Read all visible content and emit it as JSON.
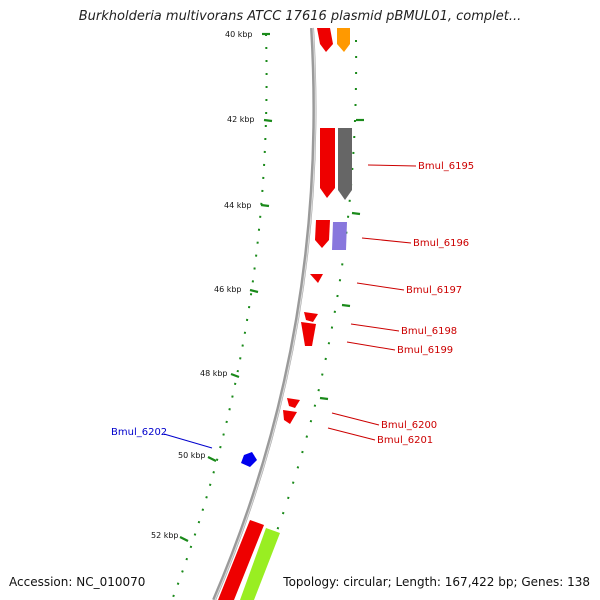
{
  "header": {
    "title": "Burkholderia multivorans ATCC 17616 plasmid pBMUL01, complet..."
  },
  "footer": {
    "accession": "Accession: NC_010070",
    "topology": "Topology: circular; Length: 167,422 bp; Genes: 138"
  },
  "map": {
    "tick_labels": [
      "40 kbp",
      "42 kbp",
      "44 kbp",
      "46 kbp",
      "48 kbp",
      "50 kbp",
      "52 kbp"
    ],
    "genes": [
      {
        "label": "Bmul_6195",
        "color": "#cc0000"
      },
      {
        "label": "Bmul_6196",
        "color": "#cc0000"
      },
      {
        "label": "Bmul_6197",
        "color": "#cc0000"
      },
      {
        "label": "Bmul_6198",
        "color": "#cc0000"
      },
      {
        "label": "Bmul_6199",
        "color": "#cc0000"
      },
      {
        "label": "Bmul_6200",
        "color": "#cc0000"
      },
      {
        "label": "Bmul_6201",
        "color": "#cc0000"
      },
      {
        "label": "Bmul_6202",
        "color": "#0000cc"
      }
    ],
    "colors": {
      "backbone": "#8a8a8a",
      "tick": "#1a8a1a",
      "forward_gene": "#ee0000",
      "reverse_gene": "#0000ee",
      "orange_feature": "#ff9900",
      "gray_feature": "#666666",
      "purple_feature": "#8877dd",
      "green_feature": "#99ee22"
    }
  }
}
